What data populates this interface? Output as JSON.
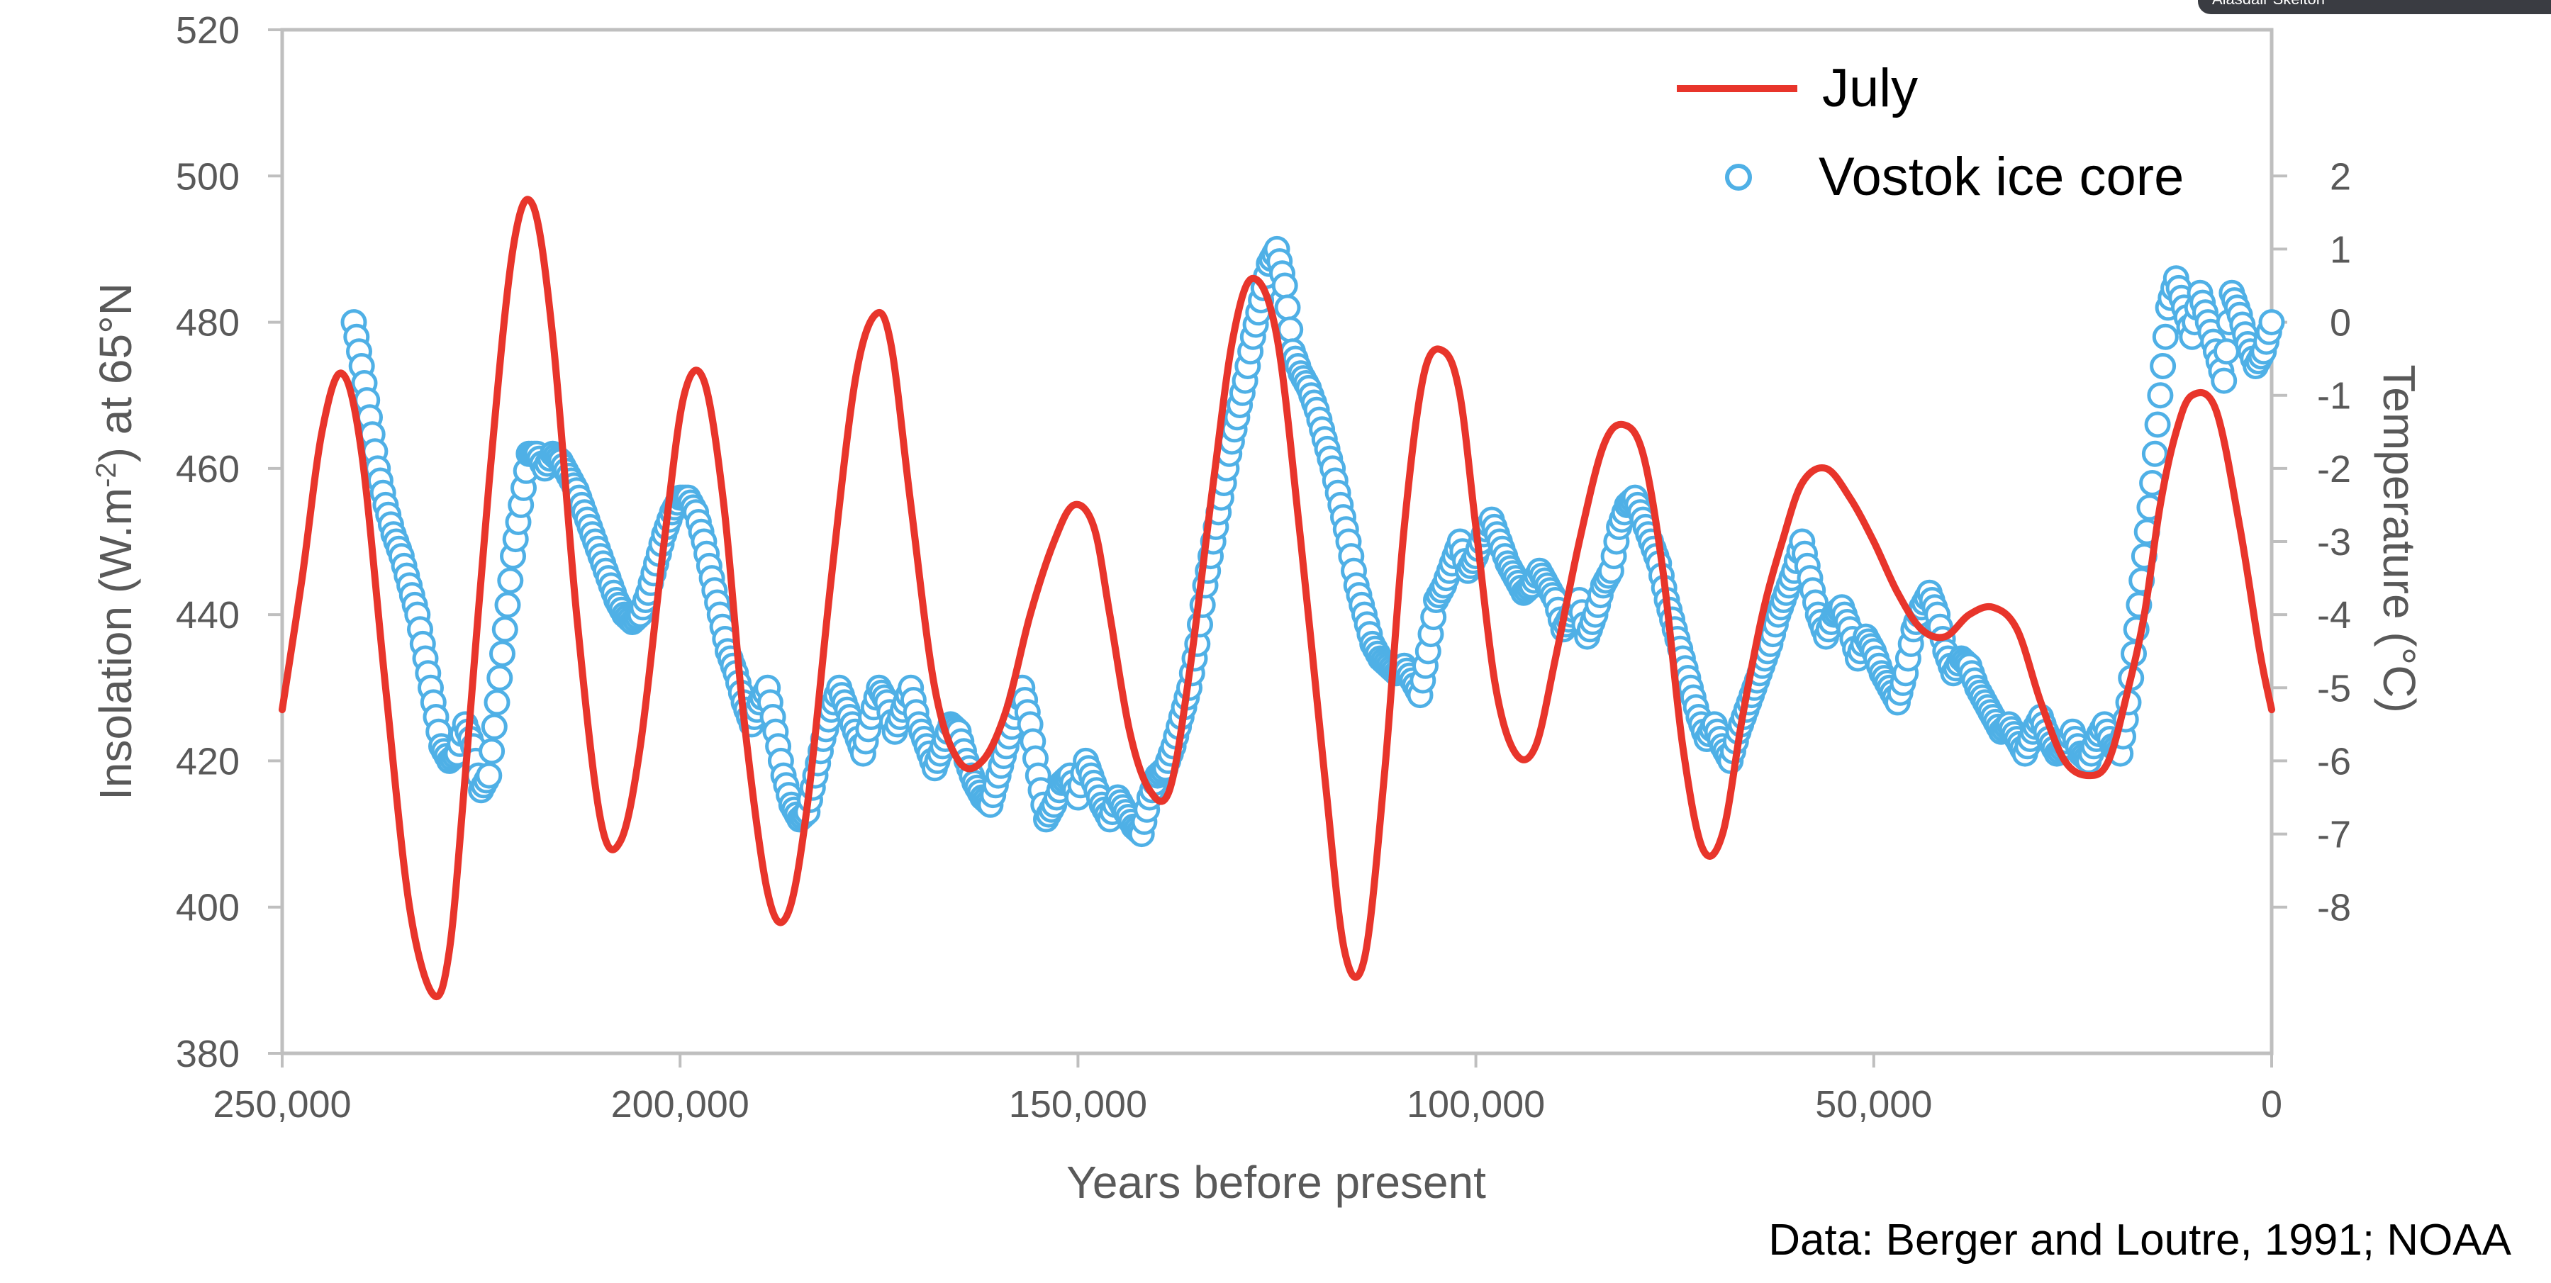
{
  "source_note": "Data: Berger and Loutre, 1991; NOAA",
  "overlay": {
    "partial_name": "Alasdair Skelton"
  },
  "chart_data": {
    "type": "line",
    "xlabel": "Years before present",
    "ylabel_left": {
      "pre": "Insolation (W.m",
      "sup": "-2",
      "post": ") at 65°N"
    },
    "ylabel_right": "Temperature (°C)",
    "xlim": [
      250000,
      0
    ],
    "ylim_left": [
      380,
      520
    ],
    "ylim_right": [
      -10,
      4
    ],
    "x_ticks": [
      250000,
      200000,
      150000,
      100000,
      50000,
      0
    ],
    "x_tick_labels": [
      "250,000",
      "200,000",
      "150,000",
      "100,000",
      "50,000",
      "0"
    ],
    "y_left_ticks": [
      380,
      400,
      420,
      440,
      460,
      480,
      500,
      520
    ],
    "y_right_ticks": [
      2,
      1,
      0,
      -1,
      -2,
      -3,
      -4,
      -5,
      -6,
      -7,
      -8
    ],
    "y_right_tick_labels": [
      "2",
      "1",
      "0",
      "-1",
      "-2",
      "-3",
      "-4",
      "-5",
      "-6",
      "-7",
      "-8"
    ],
    "grid": false,
    "legend_position": "top-right",
    "colors": {
      "july": "#e8352b",
      "vostok": "#4fb0e6",
      "axis": "#bfbfbf"
    },
    "series": [
      {
        "name": "July",
        "axis": "left",
        "style": "line",
        "x": [
          250000,
          247500,
          245000,
          242500,
          240000,
          237000,
          234000,
          231000,
          229000,
          227000,
          224000,
          221000,
          218500,
          216000,
          213000,
          210000,
          207500,
          205000,
          202000,
          199500,
          197000,
          194500,
          192000,
          189000,
          186500,
          184000,
          181000,
          178000,
          175500,
          173500,
          171000,
          168000,
          165000,
          162000,
          159000,
          156000,
          153000,
          150500,
          148000,
          146000,
          143500,
          141000,
          138500,
          136000,
          133000,
          130500,
          128000,
          125000,
          122000,
          119000,
          116500,
          114000,
          111500,
          109000,
          106500,
          104000,
          102000,
          100000,
          97500,
          95000,
          92500,
          90000,
          87000,
          84000,
          81500,
          79000,
          76500,
          74000,
          71500,
          69000,
          66500,
          64000,
          61500,
          59000,
          56000,
          53000,
          50000,
          47000,
          44000,
          41000,
          38000,
          35000,
          32000,
          29000,
          26000,
          23000,
          20500,
          18000,
          16000,
          14000,
          12000,
          10000,
          7000,
          4000,
          1500,
          0
        ],
        "y": [
          427,
          445,
          465,
          473,
          462,
          430,
          400,
          388,
          394,
          418,
          458,
          490,
          496,
          478,
          440,
          412,
          409,
          422,
          450,
          470,
          472,
          455,
          426,
          402,
          399,
          414,
          445,
          472,
          481,
          477,
          455,
          430,
          420,
          420,
          427,
          440,
          450,
          455,
          452,
          440,
          424,
          416,
          416,
          432,
          458,
          478,
          486,
          478,
          450,
          418,
          394,
          393,
          418,
          452,
          473,
          476,
          470,
          452,
          430,
          421,
          422,
          434,
          450,
          463,
          466,
          462,
          446,
          422,
          408,
          410,
          426,
          440,
          450,
          458,
          460,
          456,
          450,
          443,
          438,
          437,
          440,
          441,
          438,
          428,
          420,
          418,
          420,
          430,
          440,
          455,
          465,
          470,
          468,
          452,
          435,
          427
        ]
      },
      {
        "name": "Vostok ice core",
        "axis": "right",
        "style": "markers",
        "x": [
          241000,
          240000,
          239000,
          238000,
          237000,
          236000,
          235000,
          234000,
          233000,
          232000,
          231000,
          230000,
          229000,
          228000,
          227000,
          226000,
          225000,
          224000,
          223000,
          222000,
          221000,
          220000,
          219000,
          218000,
          217000,
          216000,
          215000,
          214000,
          213000,
          212000,
          211000,
          210000,
          209000,
          208000,
          207000,
          206000,
          205000,
          204000,
          203000,
          202000,
          201000,
          200000,
          199000,
          198000,
          197000,
          196000,
          195000,
          194000,
          193000,
          192000,
          191000,
          190000,
          189000,
          188000,
          187000,
          186000,
          185000,
          184000,
          183000,
          182000,
          181000,
          180000,
          179000,
          178000,
          177000,
          176000,
          175000,
          174000,
          173000,
          172000,
          171000,
          170000,
          169000,
          168000,
          167000,
          166000,
          165000,
          164000,
          163000,
          162000,
          161000,
          160000,
          159000,
          158000,
          157000,
          156000,
          155000,
          154000,
          153000,
          152000,
          151000,
          150000,
          149000,
          148000,
          147000,
          146000,
          145000,
          144000,
          143000,
          142000,
          141000,
          140000,
          139000,
          138000,
          137000,
          136000,
          135000,
          134000,
          133000,
          132000,
          131000,
          130000,
          129000,
          128000,
          127000,
          126000,
          125000,
          124000,
          123000,
          122000,
          121000,
          120000,
          119000,
          118000,
          117000,
          116000,
          115000,
          114000,
          113000,
          112000,
          111000,
          110000,
          109000,
          108000,
          107000,
          106000,
          105000,
          104000,
          103000,
          102000,
          101000,
          100000,
          99000,
          98000,
          97000,
          96000,
          95000,
          94000,
          93000,
          92000,
          91000,
          90000,
          89000,
          88000,
          87000,
          86000,
          85000,
          84000,
          83000,
          82000,
          81000,
          80000,
          79000,
          78000,
          77000,
          76000,
          75000,
          74000,
          73000,
          72000,
          71000,
          70000,
          69000,
          68000,
          67000,
          66000,
          65000,
          64000,
          63000,
          62000,
          61000,
          60000,
          59000,
          58000,
          57000,
          56000,
          55000,
          54000,
          53000,
          52000,
          51000,
          50000,
          49000,
          48000,
          47000,
          46000,
          45000,
          44000,
          43000,
          42000,
          41000,
          40000,
          39000,
          38000,
          37000,
          36000,
          35000,
          34000,
          33000,
          32000,
          31000,
          30000,
          29000,
          28000,
          27000,
          26000,
          25000,
          24000,
          23000,
          22000,
          21000,
          20000,
          19000,
          18000,
          17000,
          16000,
          15000,
          14000,
          13000,
          12000,
          11000,
          10000,
          9000,
          8000,
          7000,
          6000,
          5000,
          4000,
          3000,
          2000,
          1000,
          0
        ],
        "y": [
          0.0,
          -0.6,
          -1.3,
          -2.0,
          -2.5,
          -2.9,
          -3.2,
          -3.6,
          -4.0,
          -4.6,
          -5.2,
          -5.8,
          -6.0,
          -5.9,
          -5.5,
          -5.8,
          -6.4,
          -6.2,
          -5.2,
          -4.2,
          -3.2,
          -2.5,
          -1.8,
          -1.8,
          -2.0,
          -1.8,
          -1.9,
          -2.1,
          -2.3,
          -2.6,
          -2.9,
          -3.2,
          -3.5,
          -3.8,
          -4.0,
          -4.1,
          -4.0,
          -3.7,
          -3.3,
          -2.9,
          -2.6,
          -2.4,
          -2.4,
          -2.6,
          -3.0,
          -3.5,
          -4.0,
          -4.5,
          -4.8,
          -5.2,
          -5.5,
          -5.2,
          -5.0,
          -5.6,
          -6.2,
          -6.6,
          -6.8,
          -6.7,
          -6.2,
          -5.7,
          -5.3,
          -5.0,
          -5.3,
          -5.6,
          -5.9,
          -5.4,
          -5.0,
          -5.2,
          -5.6,
          -5.3,
          -5.0,
          -5.5,
          -5.8,
          -6.1,
          -5.8,
          -5.5,
          -5.6,
          -6.0,
          -6.3,
          -6.5,
          -6.6,
          -6.2,
          -5.8,
          -5.4,
          -5.0,
          -5.5,
          -6.2,
          -6.8,
          -6.6,
          -6.3,
          -6.2,
          -6.5,
          -6.0,
          -6.3,
          -6.6,
          -6.8,
          -6.5,
          -6.7,
          -6.9,
          -7.0,
          -6.5,
          -6.2,
          -6.1,
          -5.8,
          -5.4,
          -5.0,
          -4.4,
          -3.6,
          -3.0,
          -2.4,
          -1.8,
          -1.3,
          -0.8,
          -0.2,
          0.3,
          0.8,
          1.0,
          0.5,
          -0.4,
          -0.7,
          -0.9,
          -1.2,
          -1.6,
          -2.0,
          -2.5,
          -3.0,
          -3.6,
          -4.0,
          -4.4,
          -4.6,
          -4.7,
          -4.8,
          -4.7,
          -4.9,
          -5.1,
          -4.5,
          -3.8,
          -3.6,
          -3.3,
          -3.0,
          -3.4,
          -3.2,
          -2.9,
          -2.7,
          -3.0,
          -3.3,
          -3.5,
          -3.7,
          -3.6,
          -3.4,
          -3.6,
          -3.8,
          -4.2,
          -4.0,
          -3.8,
          -4.3,
          -4.0,
          -3.6,
          -3.4,
          -2.8,
          -2.5,
          -2.4,
          -2.7,
          -3.0,
          -3.3,
          -3.8,
          -4.2,
          -4.6,
          -5.0,
          -5.4,
          -5.7,
          -5.5,
          -5.8,
          -6.0,
          -5.6,
          -5.3,
          -5.0,
          -4.7,
          -4.4,
          -4.0,
          -3.7,
          -3.4,
          -3.0,
          -3.5,
          -4.0,
          -4.3,
          -4.0,
          -3.9,
          -4.2,
          -4.6,
          -4.3,
          -4.5,
          -4.8,
          -5.0,
          -5.2,
          -4.8,
          -4.2,
          -3.9,
          -3.7,
          -4.0,
          -4.5,
          -4.8,
          -4.6,
          -4.7,
          -5.0,
          -5.2,
          -5.4,
          -5.6,
          -5.5,
          -5.7,
          -5.9,
          -5.6,
          -5.4,
          -5.7,
          -5.9,
          -5.8,
          -5.6,
          -5.9,
          -6.0,
          -5.7,
          -5.5,
          -5.8,
          -5.9,
          -5.2,
          -4.2,
          -3.2,
          -2.2,
          -1.0,
          0.2,
          0.6,
          0.2,
          -0.2,
          0.4,
          0.0,
          -0.4,
          -0.8,
          0.4,
          0.1,
          -0.3,
          -0.6,
          -0.4,
          0.0
        ]
      }
    ]
  }
}
